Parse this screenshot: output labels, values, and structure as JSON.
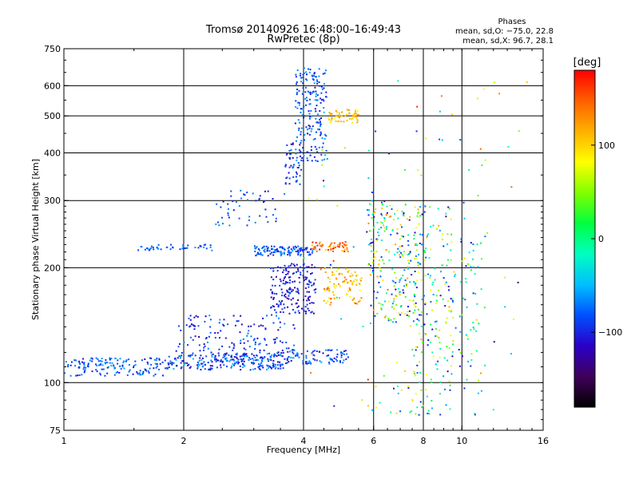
{
  "header": {
    "title_line1": "Tromsø 20140926 16:48:00–16:49:43",
    "title_line2": "RwPretec (8p)"
  },
  "stats": {
    "label": "Phases",
    "line1": "mean, sd,O: −75.0, 22.8",
    "line2": "mean, sd,X:  96.7, 28.1"
  },
  "chart_data": {
    "type": "scatter",
    "xlabel": "Frequency [MHz]",
    "ylabel": "Stationary phase Virtual Height [km]",
    "xscale": "log",
    "yscale": "log",
    "xlim": [
      1,
      16
    ],
    "ylim": [
      75,
      750
    ],
    "xticks": [
      1,
      2,
      4,
      6,
      8,
      10,
      16
    ],
    "xtick_labels": [
      "1",
      "2",
      "4",
      "6",
      "8",
      "10",
      "16"
    ],
    "yticks": [
      75,
      100,
      200,
      300,
      400,
      500,
      600,
      750
    ],
    "ytick_labels": [
      "75",
      "100",
      "200",
      "300",
      "400",
      "500",
      "600",
      "750"
    ],
    "grid": true,
    "colorbar": {
      "unit": "deg",
      "range": [
        -180,
        180
      ],
      "ticks": [
        100,
        0,
        -100
      ],
      "tick_labels": [
        "100",
        "0",
        "−100"
      ],
      "colors": [
        "#000000",
        "#40005a",
        "#2a00c8",
        "#0050ff",
        "#00bfff",
        "#00ffc0",
        "#00ff40",
        "#80ff00",
        "#ffff00",
        "#ffb000",
        "#ff6000",
        "#ff0000"
      ]
    },
    "clusters": [
      {
        "f": [
          1.0,
          1.8
        ],
        "h": [
          104,
          116
        ],
        "p": [
          -110,
          -55
        ],
        "n": 150
      },
      {
        "f": [
          1.8,
          3.6
        ],
        "h": [
          108,
          120
        ],
        "p": [
          -120,
          -50
        ],
        "n": 260
      },
      {
        "f": [
          3.6,
          5.2
        ],
        "h": [
          112,
          122
        ],
        "p": [
          -120,
          -50
        ],
        "n": 90
      },
      {
        "f": [
          1.9,
          3.8
        ],
        "h": [
          120,
          150
        ],
        "p": [
          -130,
          -60
        ],
        "n": 130
      },
      {
        "f": [
          1.5,
          2.5
        ],
        "h": [
          222,
          230
        ],
        "p": [
          -100,
          -60
        ],
        "n": 45
      },
      {
        "f": [
          3.0,
          4.3
        ],
        "h": [
          215,
          228
        ],
        "p": [
          -110,
          -55
        ],
        "n": 120
      },
      {
        "f": [
          4.2,
          5.2
        ],
        "h": [
          220,
          234
        ],
        "p": [
          100,
          180
        ],
        "n": 50
      },
      {
        "f": [
          2.4,
          3.6
        ],
        "h": [
          255,
          320
        ],
        "p": [
          -110,
          -60
        ],
        "n": 50
      },
      {
        "f": [
          3.3,
          4.3
        ],
        "h": [
          150,
          205
        ],
        "p": [
          -130,
          -80
        ],
        "n": 180
      },
      {
        "f": [
          3.6,
          4.0
        ],
        "h": [
          330,
          430
        ],
        "p": [
          -120,
          -70
        ],
        "n": 50
      },
      {
        "f": [
          3.8,
          4.6
        ],
        "h": [
          380,
          670
        ],
        "p": [
          -110,
          -55
        ],
        "n": 190
      },
      {
        "f": [
          4.6,
          5.5
        ],
        "h": [
          480,
          520
        ],
        "p": [
          80,
          130
        ],
        "n": 55
      },
      {
        "f": [
          4.5,
          5.6
        ],
        "h": [
          160,
          200
        ],
        "p": [
          70,
          150
        ],
        "n": 90
      },
      {
        "f": [
          5.8,
          7.8
        ],
        "h": [
          140,
          300
        ],
        "p": [
          -130,
          140
        ],
        "n": 230
      },
      {
        "f": [
          7.5,
          9.6
        ],
        "h": [
          100,
          290
        ],
        "p": [
          -130,
          120
        ],
        "n": 170
      },
      {
        "f": [
          9.8,
          11.5
        ],
        "h": [
          90,
          240
        ],
        "p": [
          -120,
          100
        ],
        "n": 55
      },
      {
        "f": [
          4.0,
          15.0
        ],
        "h": [
          80,
          620
        ],
        "p": [
          -150,
          170
        ],
        "n": 90
      },
      {
        "f": [
          5.8,
          9.5
        ],
        "h": [
          82,
          100
        ],
        "p": [
          -130,
          120
        ],
        "n": 35
      }
    ]
  }
}
